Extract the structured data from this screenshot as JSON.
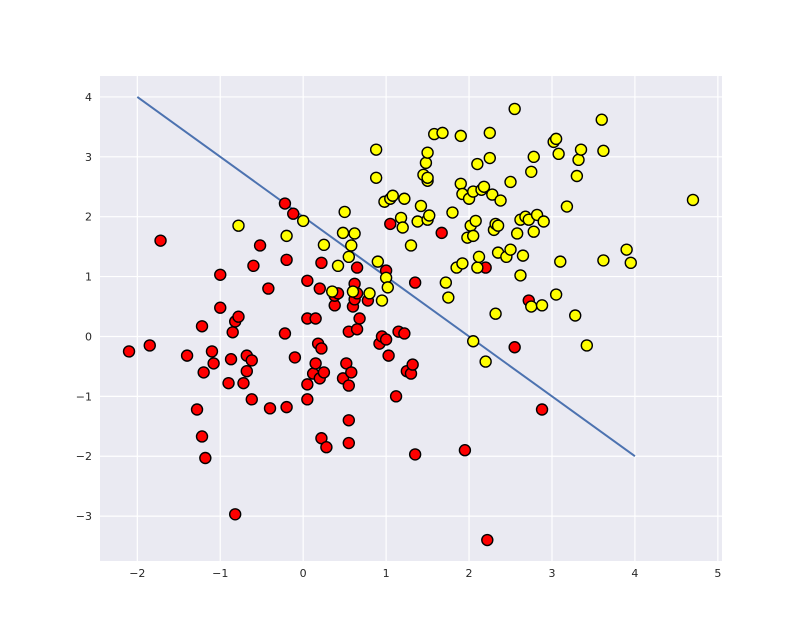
{
  "chart_data": {
    "type": "scatter",
    "title": "",
    "xlabel": "",
    "ylabel": "",
    "xlim": [
      -2.45,
      5.05
    ],
    "ylim": [
      -3.75,
      4.35
    ],
    "xticks": [
      -2,
      -1,
      0,
      1,
      2,
      3,
      4,
      5
    ],
    "yticks": [
      -3,
      -2,
      -1,
      0,
      1,
      2,
      3,
      4
    ],
    "grid": true,
    "background": "#eaeaf2",
    "grid_color": "#ffffff",
    "decision_line": {
      "x": [
        -2,
        4
      ],
      "y": [
        4,
        -2
      ],
      "color": "#4c72b0"
    },
    "series": [
      {
        "color": "#ff0000",
        "points": [
          [
            -2.1,
            -0.25
          ],
          [
            -1.85,
            -0.15
          ],
          [
            -1.72,
            1.6
          ],
          [
            -1.4,
            -0.32
          ],
          [
            -1.28,
            -1.22
          ],
          [
            -1.22,
            -1.67
          ],
          [
            -1.18,
            -2.03
          ],
          [
            -1.2,
            -0.6
          ],
          [
            -1.22,
            0.17
          ],
          [
            -1.1,
            -0.25
          ],
          [
            -1.08,
            -0.45
          ],
          [
            -1.0,
            0.48
          ],
          [
            -1.0,
            1.03
          ],
          [
            -0.9,
            -0.78
          ],
          [
            -0.87,
            -0.38
          ],
          [
            -0.85,
            0.07
          ],
          [
            -0.82,
            0.25
          ],
          [
            -0.78,
            0.33
          ],
          [
            -0.82,
            -2.97
          ],
          [
            -0.72,
            -0.78
          ],
          [
            -0.68,
            -0.32
          ],
          [
            -0.68,
            -0.58
          ],
          [
            -0.62,
            -0.4
          ],
          [
            -0.6,
            1.18
          ],
          [
            -0.62,
            -1.05
          ],
          [
            -0.52,
            1.52
          ],
          [
            -0.42,
            0.8
          ],
          [
            -0.4,
            -1.2
          ],
          [
            -0.22,
            2.22
          ],
          [
            -0.22,
            0.05
          ],
          [
            -0.2,
            1.28
          ],
          [
            -0.2,
            -1.18
          ],
          [
            -0.12,
            2.05
          ],
          [
            -0.1,
            -0.35
          ],
          [
            0.05,
            0.3
          ],
          [
            0.05,
            0.93
          ],
          [
            0.05,
            -0.8
          ],
          [
            0.05,
            -1.05
          ],
          [
            0.12,
            -0.62
          ],
          [
            0.15,
            0.3
          ],
          [
            0.15,
            -0.45
          ],
          [
            0.18,
            -0.12
          ],
          [
            0.2,
            -0.7
          ],
          [
            0.2,
            0.8
          ],
          [
            0.22,
            -1.7
          ],
          [
            0.25,
            -0.6
          ],
          [
            0.28,
            -1.85
          ],
          [
            0.22,
            -0.2
          ],
          [
            0.22,
            1.23
          ],
          [
            0.38,
            0.52
          ],
          [
            0.38,
            0.68
          ],
          [
            0.42,
            0.72
          ],
          [
            0.48,
            -0.7
          ],
          [
            0.52,
            -0.45
          ],
          [
            0.55,
            -0.82
          ],
          [
            0.55,
            0.08
          ],
          [
            0.55,
            -1.4
          ],
          [
            0.55,
            -1.78
          ],
          [
            0.58,
            -0.6
          ],
          [
            0.6,
            0.5
          ],
          [
            0.62,
            0.88
          ],
          [
            0.62,
            0.62
          ],
          [
            0.65,
            0.72
          ],
          [
            0.65,
            1.15
          ],
          [
            0.65,
            0.12
          ],
          [
            0.68,
            0.3
          ],
          [
            0.78,
            0.6
          ],
          [
            0.92,
            -0.12
          ],
          [
            0.95,
            0.0
          ],
          [
            1.0,
            1.1
          ],
          [
            1.0,
            -0.05
          ],
          [
            1.03,
            -0.32
          ],
          [
            1.05,
            1.88
          ],
          [
            1.12,
            -1.0
          ],
          [
            1.15,
            0.08
          ],
          [
            1.22,
            0.05
          ],
          [
            1.25,
            -0.58
          ],
          [
            1.3,
            -0.62
          ],
          [
            1.32,
            -0.47
          ],
          [
            1.35,
            0.9
          ],
          [
            1.35,
            -1.97
          ],
          [
            1.67,
            1.73
          ],
          [
            1.95,
            -1.9
          ],
          [
            2.2,
            1.15
          ],
          [
            2.22,
            -3.4
          ],
          [
            2.55,
            -0.18
          ],
          [
            2.72,
            0.6
          ],
          [
            2.88,
            -1.22
          ]
        ]
      },
      {
        "color": "#ffff00",
        "points": [
          [
            -0.78,
            1.85
          ],
          [
            -0.2,
            1.68
          ],
          [
            0.0,
            1.93
          ],
          [
            0.25,
            1.53
          ],
          [
            0.35,
            0.75
          ],
          [
            0.42,
            1.18
          ],
          [
            0.48,
            1.73
          ],
          [
            0.5,
            2.08
          ],
          [
            0.55,
            1.33
          ],
          [
            0.58,
            1.52
          ],
          [
            0.6,
            0.75
          ],
          [
            0.62,
            1.72
          ],
          [
            0.8,
            0.72
          ],
          [
            0.88,
            3.12
          ],
          [
            0.88,
            2.65
          ],
          [
            0.9,
            1.25
          ],
          [
            0.95,
            0.6
          ],
          [
            0.98,
            2.25
          ],
          [
            1.0,
            0.98
          ],
          [
            1.02,
            0.82
          ],
          [
            1.05,
            2.3
          ],
          [
            1.08,
            2.35
          ],
          [
            1.18,
            1.98
          ],
          [
            1.2,
            1.82
          ],
          [
            1.22,
            2.3
          ],
          [
            1.3,
            1.52
          ],
          [
            1.38,
            1.92
          ],
          [
            1.42,
            2.18
          ],
          [
            1.45,
            2.7
          ],
          [
            1.48,
            2.9
          ],
          [
            1.5,
            3.07
          ],
          [
            1.5,
            2.6
          ],
          [
            1.5,
            2.65
          ],
          [
            1.5,
            1.95
          ],
          [
            1.52,
            2.02
          ],
          [
            1.58,
            3.38
          ],
          [
            1.68,
            3.4
          ],
          [
            1.72,
            0.9
          ],
          [
            1.75,
            0.65
          ],
          [
            1.8,
            2.07
          ],
          [
            1.85,
            1.15
          ],
          [
            1.9,
            3.35
          ],
          [
            1.9,
            2.55
          ],
          [
            1.92,
            2.38
          ],
          [
            1.92,
            1.22
          ],
          [
            1.98,
            1.65
          ],
          [
            2.0,
            2.3
          ],
          [
            2.02,
            1.85
          ],
          [
            2.05,
            2.42
          ],
          [
            2.05,
            1.68
          ],
          [
            2.08,
            1.93
          ],
          [
            2.1,
            2.88
          ],
          [
            2.1,
            1.15
          ],
          [
            2.12,
            1.33
          ],
          [
            2.15,
            2.45
          ],
          [
            2.18,
            2.5
          ],
          [
            2.2,
            -0.42
          ],
          [
            2.25,
            2.98
          ],
          [
            2.25,
            3.4
          ],
          [
            2.28,
            2.37
          ],
          [
            2.3,
            1.78
          ],
          [
            2.32,
            1.88
          ],
          [
            2.32,
            0.38
          ],
          [
            2.35,
            1.4
          ],
          [
            2.35,
            1.85
          ],
          [
            2.38,
            2.27
          ],
          [
            2.45,
            1.33
          ],
          [
            2.5,
            2.58
          ],
          [
            2.5,
            1.45
          ],
          [
            2.55,
            3.8
          ],
          [
            2.58,
            1.72
          ],
          [
            2.62,
            1.95
          ],
          [
            2.62,
            1.02
          ],
          [
            2.65,
            1.35
          ],
          [
            2.68,
            2.0
          ],
          [
            2.72,
            1.95
          ],
          [
            2.75,
            2.75
          ],
          [
            2.78,
            3.0
          ],
          [
            2.78,
            1.75
          ],
          [
            2.82,
            2.03
          ],
          [
            2.75,
            0.5
          ],
          [
            2.88,
            0.52
          ],
          [
            2.9,
            1.92
          ],
          [
            3.02,
            3.25
          ],
          [
            3.05,
            3.3
          ],
          [
            3.05,
            0.7
          ],
          [
            3.08,
            3.05
          ],
          [
            3.1,
            1.25
          ],
          [
            3.18,
            2.17
          ],
          [
            3.28,
            0.35
          ],
          [
            3.3,
            2.68
          ],
          [
            3.32,
            2.95
          ],
          [
            3.35,
            3.12
          ],
          [
            3.42,
            -0.15
          ],
          [
            3.6,
            3.62
          ],
          [
            3.62,
            3.1
          ],
          [
            3.62,
            1.27
          ],
          [
            3.9,
            1.45
          ],
          [
            3.95,
            1.23
          ],
          [
            4.7,
            2.28
          ],
          [
            2.05,
            -0.08
          ]
        ]
      }
    ]
  }
}
